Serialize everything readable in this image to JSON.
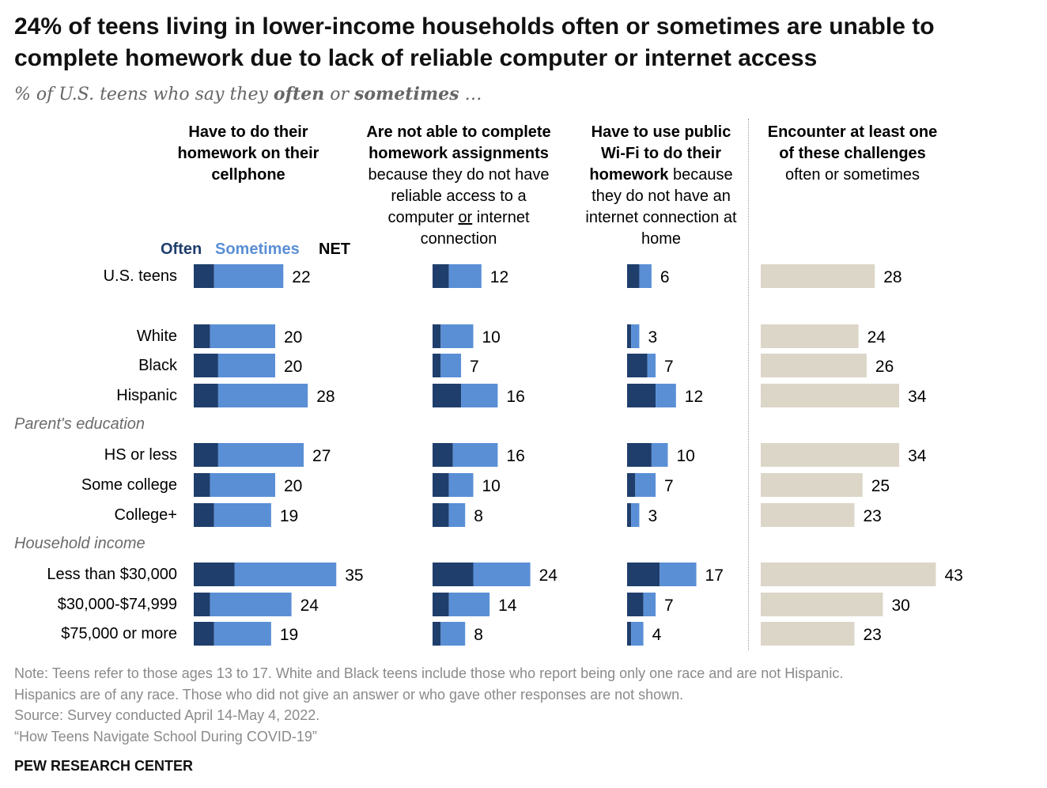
{
  "title": "24% of teens living in lower-income households often or sometimes are unable to complete homework due to lack of reliable computer or internet access",
  "subtitle": {
    "prefix": "% of U.S. teens who say they ",
    "often": "often",
    "mid": " or ",
    "sometimes": "sometimes",
    "suffix": " …"
  },
  "columns": [
    {
      "head_bold": "Have to do their homework on their cellphone",
      "head_rest": ""
    },
    {
      "head_bold_1": "Are not able to complete homework assignments",
      "head_rest_1": " because they do not have reliable access to a computer ",
      "head_u": "or",
      "head_rest_2": " internet connection"
    },
    {
      "head_bold": "Have to use public Wi-Fi to do their homework",
      "head_rest": " because they do not have an internet connection at home"
    },
    {
      "head_bold": "Encounter at least one of these challenges",
      "head_rest": " often or sometimes"
    }
  ],
  "legend": {
    "often": "Often",
    "sometimes": "Sometimes",
    "net": "NET"
  },
  "groups": [
    "Parent's education",
    "Household income"
  ],
  "colors": {
    "often": "#1f3e6c",
    "sometimes": "#5a8fd6",
    "net": "#dcd6c8"
  },
  "chart_data": {
    "type": "bar",
    "categories": [
      "U.S. teens",
      "White",
      "Black",
      "Hispanic",
      "HS or less",
      "Some college",
      "College+",
      "Less than $30,000",
      "$30,000-$74,999",
      "$75,000 or more"
    ],
    "series": [
      {
        "name": "Have to do their homework on their cellphone",
        "often": [
          5,
          4,
          6,
          6,
          6,
          4,
          5,
          10,
          4,
          5
        ],
        "net": [
          22,
          20,
          20,
          28,
          27,
          20,
          19,
          35,
          24,
          19
        ]
      },
      {
        "name": "Are not able to complete homework assignments",
        "often": [
          4,
          2,
          2,
          7,
          5,
          4,
          4,
          10,
          4,
          2
        ],
        "net": [
          12,
          10,
          7,
          16,
          16,
          10,
          8,
          24,
          14,
          8
        ]
      },
      {
        "name": "Have to use public Wi-Fi to do their homework",
        "often": [
          3,
          1,
          5,
          7,
          6,
          2,
          1,
          8,
          4,
          1
        ],
        "net": [
          6,
          3,
          7,
          12,
          10,
          7,
          3,
          17,
          7,
          4
        ]
      },
      {
        "name": "Encounter at least one of these challenges",
        "net": [
          28,
          24,
          26,
          34,
          34,
          25,
          23,
          43,
          30,
          23
        ]
      }
    ]
  },
  "note": [
    "Note: Teens refer to those ages 13 to 17. White and Black teens include those who report being only one race and are not Hispanic.",
    "Hispanics are of any race. Those who did not give an answer or who gave other responses are not shown.",
    "Source: Survey conducted April 14-May 4, 2022.",
    "“How Teens Navigate School During COVID-19”"
  ],
  "brand": "PEW RESEARCH CENTER"
}
